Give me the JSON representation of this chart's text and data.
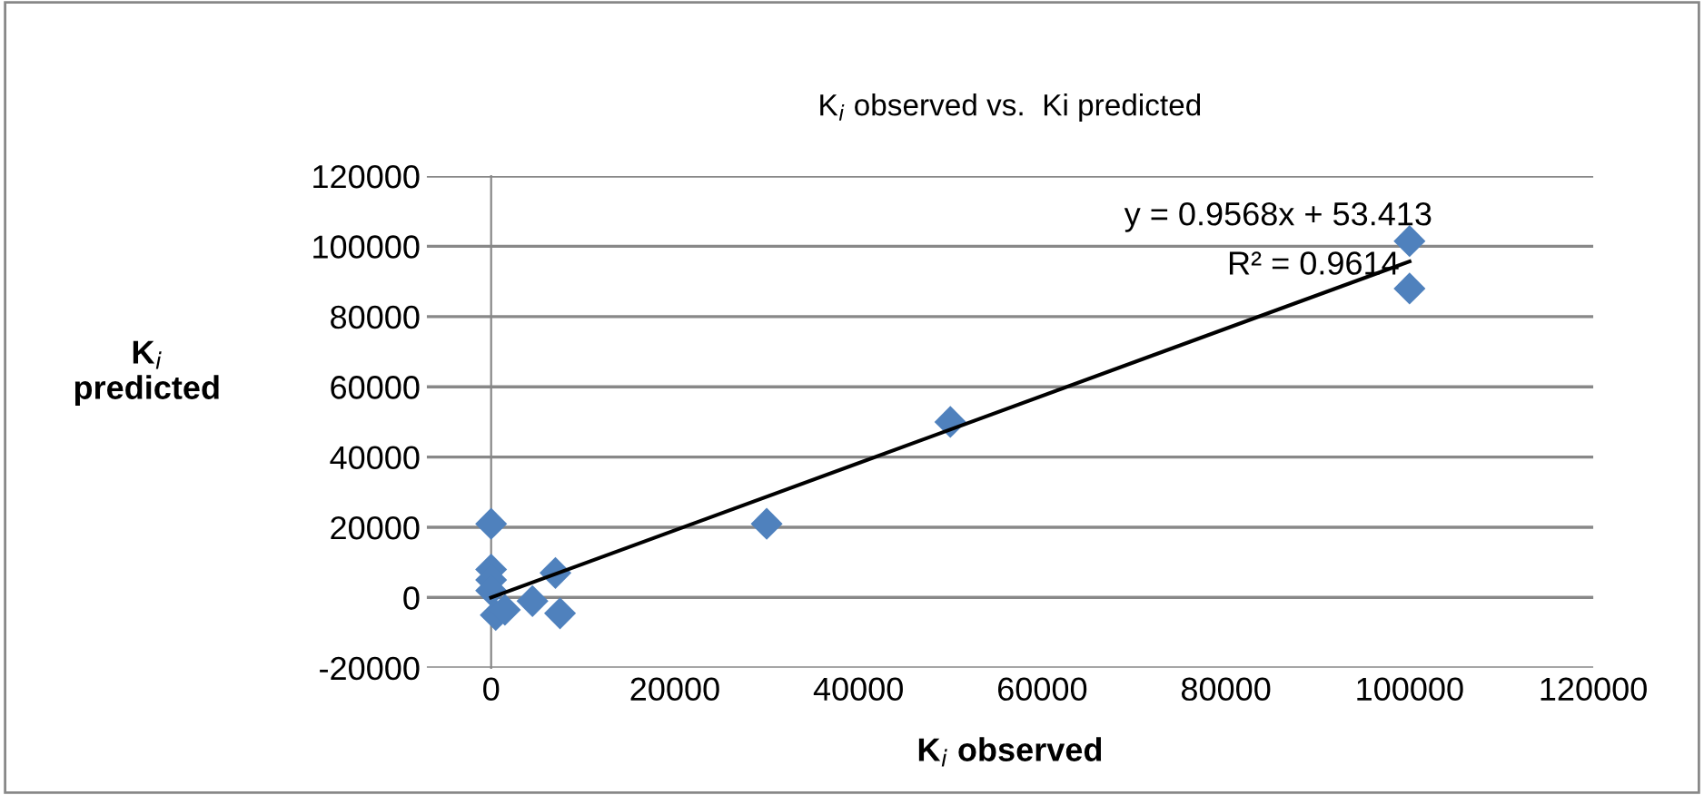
{
  "chart_data": {
    "type": "scatter",
    "title": "K$_{i}$ observed vs.  Ki predicted",
    "xlabel": "K$_{i}$ observed",
    "ylabel": "K$_{i}$ predicted",
    "annotations": [
      "y = 0.9568x + 53.413",
      "R² = 0.9614"
    ],
    "series": [
      {
        "color": "#4f81bd",
        "marker": "diamond",
        "x": [
          100000,
          100000,
          50000,
          30000,
          7000,
          7500,
          4500,
          0,
          0,
          0,
          0,
          500,
          1500
        ],
        "values": [
          101500,
          88000,
          50000,
          21000,
          7000,
          -4500,
          -1000,
          21000,
          8000,
          5000,
          2000,
          -5000,
          -3500
        ]
      },
      {
        "type": "line",
        "color": "#000000",
        "marker": "none",
        "x": [
          0,
          100000
        ],
        "values": [
          0,
          95700
        ]
      }
    ],
    "xlim": [
      -7000,
      120000
    ],
    "ylim": [
      -20000,
      120000
    ],
    "xticks": [
      0,
      20000,
      40000,
      60000,
      80000,
      100000,
      120000
    ],
    "yticks": [
      -20000,
      0,
      20000,
      40000,
      60000,
      80000,
      100000,
      120000
    ],
    "grid": "y",
    "legend": false
  }
}
